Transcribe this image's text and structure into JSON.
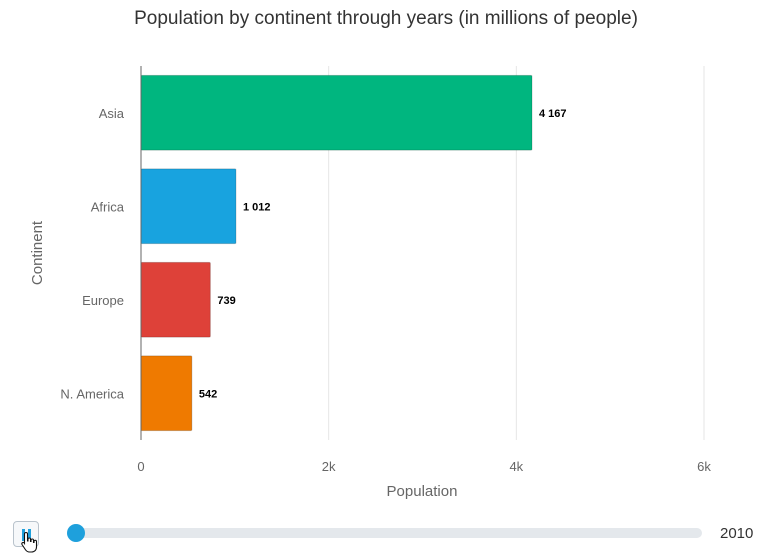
{
  "chart_data": {
    "type": "bar",
    "orientation": "horizontal",
    "title": "Population by continent through years (in millions of people)",
    "xlabel": "Population",
    "ylabel": "Continent",
    "categories": [
      "Asia",
      "Africa",
      "Europe",
      "N. America"
    ],
    "values": [
      4167,
      1012,
      739,
      542
    ],
    "data_labels": [
      "4 167",
      "1 012",
      "739",
      "542"
    ],
    "colors": [
      "#00b67f",
      "#18a3df",
      "#de4139",
      "#ef7a00"
    ],
    "xlim": [
      0,
      6000
    ],
    "x_ticks": [
      0,
      2000,
      4000,
      6000
    ],
    "x_tick_labels": [
      "0",
      "2k",
      "4k",
      "6k"
    ],
    "grid": true,
    "legend": false
  },
  "player": {
    "icon": "pause-icon",
    "year": "2010",
    "progress": 0,
    "accent": "#1ea0dc"
  }
}
